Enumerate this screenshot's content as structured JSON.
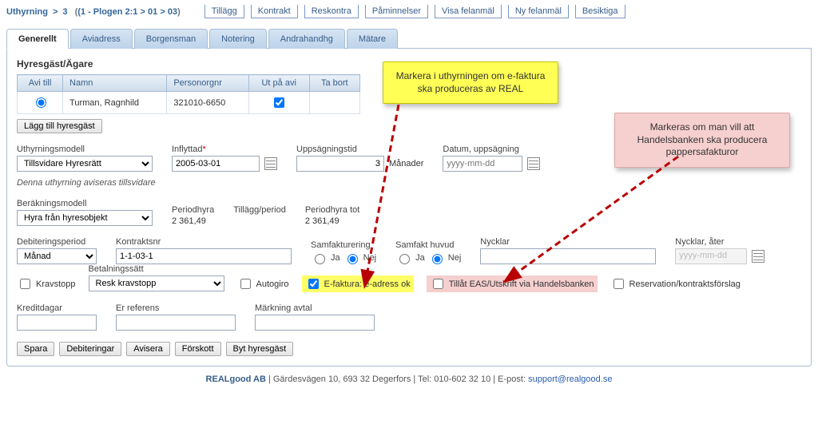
{
  "breadcrumb": {
    "root": "Uthyrning",
    "sep": ">",
    "second": "3",
    "openParen": "(1 - Plogen 2:1",
    "third": "01",
    "fourth": "03",
    "closeParen": ")"
  },
  "miniTabs": [
    "Tillägg",
    "Kontrakt",
    "Reskontra",
    "Påminnelser",
    "Visa felanmäl",
    "Ny felanmäl",
    "Besiktiga"
  ],
  "tabs": [
    "Generellt",
    "Aviadress",
    "Borgensman",
    "Notering",
    "Andrahandhg",
    "Mätare"
  ],
  "activeTab": 0,
  "section": {
    "title": "Hyresgäst/Ägare",
    "cols": [
      "Avi till",
      "Namn",
      "Personorgnr",
      "Ut på avi",
      "Ta bort"
    ],
    "row": {
      "namn": "Turman, Ragnhild",
      "pnr": "321010-6650"
    },
    "addBtn": "Lägg till hyresgäst"
  },
  "fields": {
    "model_lbl": "Uthyrningsmodell",
    "model_val": "Tillsvidare Hyresrätt",
    "inflytt_lbl": "Inflyttad",
    "inflytt_val": "2005-03-01",
    "upps_lbl": "Uppsägningstid",
    "upps_val": "3",
    "upps_unit": "Månader",
    "datumups_lbl": "Datum, uppsägning",
    "datumups_ph": "yyyy-mm-dd",
    "note": "Denna uthyrning aviseras tillsvidare",
    "berak_lbl": "Beräkningsmodell",
    "berak_val": "Hyra från hyresobjekt",
    "period_lbl": "Periodhyra",
    "period_val": "2 361,49",
    "tillagg_lbl": "Tillägg/period",
    "periodtot_lbl": "Periodhyra tot",
    "periodtot_val": "2 361,49",
    "debper_lbl": "Debiteringsperiod",
    "debper_val": "Månad",
    "kontr_lbl": "Kontraktsnr",
    "kontr_val": "1-1-03-1",
    "samfakt_lbl": "Samfakturering",
    "samhuvud_lbl": "Samfakt huvud",
    "ja": "Ja",
    "nej": "Nej",
    "nycklar_lbl": "Nycklar",
    "nycklar_ater_lbl": "Nycklar, åter",
    "nycklar_ater_ph": "yyyy-mm-dd",
    "kravstopp": "Kravstopp",
    "betsatt_lbl": "Betalningssätt",
    "betsatt_val": "Resk kravstopp",
    "autogiro": "Autogiro",
    "efaktura": "E-faktura: e-adress ok",
    "eas": "Tillåt EAS/Utskrift via Handelsbanken",
    "reserv": "Reservation/kontraktsförslag",
    "kred_lbl": "Kreditdagar",
    "erref_lbl": "Er referens",
    "markn_lbl": "Märkning avtal"
  },
  "actions": [
    "Spara",
    "Debiteringar",
    "Avisera",
    "Förskott",
    "Byt hyresgäst"
  ],
  "callouts": {
    "yellow": "Markera i uthyrningen om e-faktura ska produceras av REAL",
    "pink": "Markeras om man vill att Handelsbanken ska  producera pappersafakturor"
  },
  "footer": {
    "company": "REALgood AB",
    "rest": " | Gärdesvägen 10, 693 32 Degerfors | Tel: 010-602 32 10 | E-post: ",
    "email": "support@realgood.se"
  },
  "colors": {
    "yellow": "#ffff55",
    "pink": "#f6cfcf",
    "arrow": "#b80000"
  }
}
